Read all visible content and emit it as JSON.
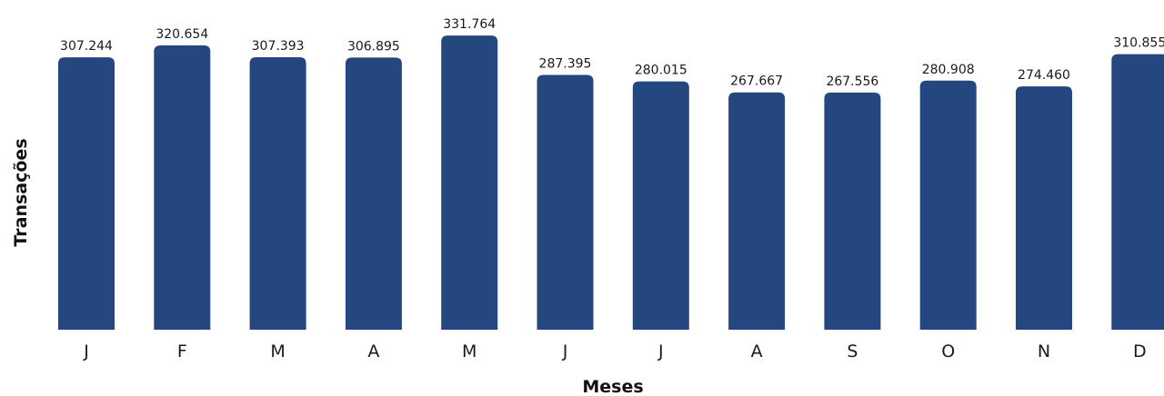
{
  "chart_data": {
    "type": "bar",
    "categories": [
      "J",
      "F",
      "M",
      "A",
      "M",
      "J",
      "J",
      "A",
      "S",
      "O",
      "N",
      "D"
    ],
    "values": [
      307244,
      320654,
      307393,
      306895,
      331764,
      287395,
      280015,
      267667,
      267556,
      280908,
      274460,
      310855
    ],
    "value_labels": [
      "307.244",
      "320.654",
      "307.393",
      "306.895",
      "331.764",
      "287.395",
      "280.015",
      "267.667",
      "267.556",
      "280.908",
      "274.460",
      "310.855"
    ],
    "xlabel": "Meses",
    "ylabel": "Transações",
    "ylim": [
      0,
      335000
    ],
    "grid": false,
    "legend": "none",
    "colors": {
      "bar": "#24477f",
      "text": "#1a1a1a",
      "background": "#ffffff"
    }
  }
}
